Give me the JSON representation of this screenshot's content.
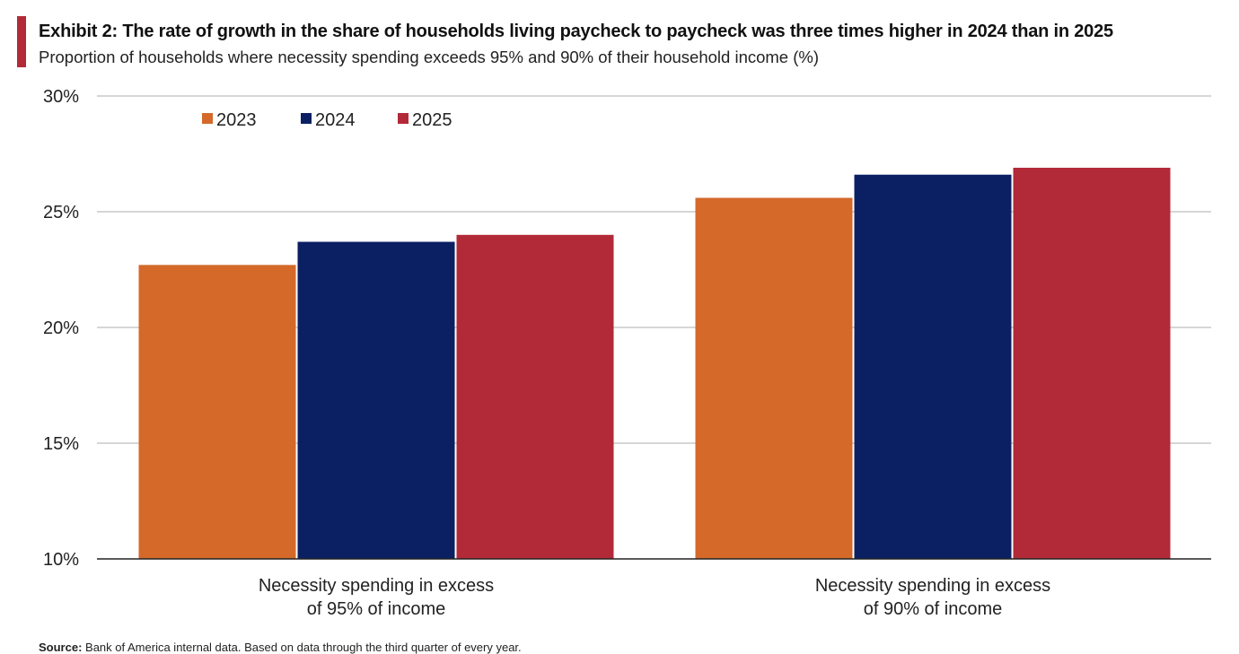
{
  "header": {
    "title": "Exhibit 2: The rate of growth in the share of households living paycheck to paycheck was three times higher in 2024 than in 2025",
    "subtitle": "Proportion of households where necessity spending exceeds 95% and 90% of their household income (%)",
    "accent_color": "#b22a38"
  },
  "footer": {
    "source_label": "Source:",
    "source_text": "Bank of America internal data. Based on data through the third quarter of every year."
  },
  "chart_data": {
    "type": "bar",
    "title": "Exhibit 2: The rate of growth in the share of households living paycheck to paycheck was three times higher in 2024 than in 2025",
    "categories": [
      [
        "Necessity spending in excess",
        "of 95% of income"
      ],
      [
        "Necessity spending in excess",
        "of 90% of income"
      ]
    ],
    "series": [
      {
        "name": "2023",
        "color": "#d4692a",
        "values": [
          22.7,
          25.6
        ]
      },
      {
        "name": "2024",
        "color": "#0b2063",
        "values": [
          23.7,
          26.6
        ]
      },
      {
        "name": "2025",
        "color": "#b22a38",
        "values": [
          24.0,
          26.9
        ]
      }
    ],
    "ylim": [
      10,
      30
    ],
    "yticks": [
      10,
      15,
      20,
      25,
      30
    ],
    "ytick_labels": [
      "10%",
      "15%",
      "20%",
      "25%",
      "30%"
    ],
    "grid": true,
    "legend": "top-left",
    "xlabel": "",
    "ylabel": ""
  }
}
